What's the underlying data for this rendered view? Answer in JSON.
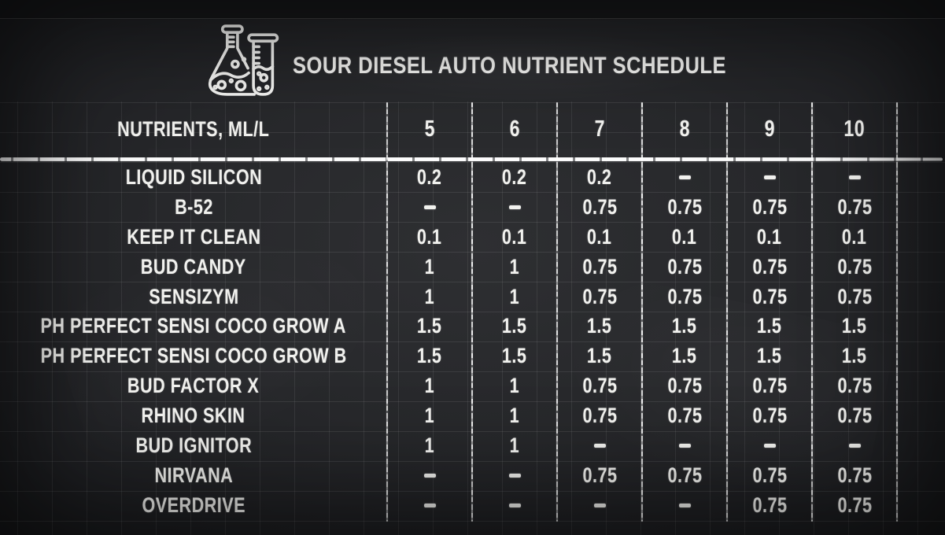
{
  "title": "SOUR DIESEL AUTO NUTRIENT SCHEDULE",
  "icon": "flask-and-test-tube-icon",
  "colors": {
    "board_background": "#27282b",
    "board_edge": "#17181a",
    "chalk_text": "#f1f1ee",
    "grid_line": "#45474a"
  },
  "chart_data": {
    "type": "table",
    "title": "SOUR DIESEL AUTO NUTRIENT SCHEDULE",
    "header_label": "NUTRIENTS, ML/L",
    "week_columns": [
      "5",
      "6",
      "7",
      "8",
      "9",
      "10"
    ],
    "empty_value_symbol": "-",
    "rows": [
      {
        "label": "LIQUID SILICON",
        "values": [
          "0.2",
          "0.2",
          "0.2",
          "-",
          "-",
          "-"
        ]
      },
      {
        "label": "B-52",
        "values": [
          "-",
          "-",
          "0.75",
          "0.75",
          "0.75",
          "0.75"
        ]
      },
      {
        "label": "KEEP IT CLEAN",
        "values": [
          "0.1",
          "0.1",
          "0.1",
          "0.1",
          "0.1",
          "0.1"
        ]
      },
      {
        "label": "BUD CANDY",
        "values": [
          "1",
          "1",
          "0.75",
          "0.75",
          "0.75",
          "0.75"
        ]
      },
      {
        "label": "SENSIZYM",
        "values": [
          "1",
          "1",
          "0.75",
          "0.75",
          "0.75",
          "0.75"
        ]
      },
      {
        "label": "PH PERFECT SENSI COCO GROW A",
        "values": [
          "1.5",
          "1.5",
          "1.5",
          "1.5",
          "1.5",
          "1.5"
        ]
      },
      {
        "label": "PH PERFECT SENSI COCO GROW B",
        "values": [
          "1.5",
          "1.5",
          "1.5",
          "1.5",
          "1.5",
          "1.5"
        ]
      },
      {
        "label": "BUD FACTOR X",
        "values": [
          "1",
          "1",
          "0.75",
          "0.75",
          "0.75",
          "0.75"
        ]
      },
      {
        "label": "RHINO SKIN",
        "values": [
          "1",
          "1",
          "0.75",
          "0.75",
          "0.75",
          "0.75"
        ]
      },
      {
        "label": "BUD IGNITOR",
        "values": [
          "1",
          "1",
          "-",
          "-",
          "-",
          "-"
        ]
      },
      {
        "label": "NIRVANA",
        "values": [
          "-",
          "-",
          "0.75",
          "0.75",
          "0.75",
          "0.75"
        ]
      },
      {
        "label": "OVERDRIVE",
        "values": [
          "-",
          "-",
          "-",
          "-",
          "0.75",
          "0.75"
        ]
      }
    ]
  }
}
